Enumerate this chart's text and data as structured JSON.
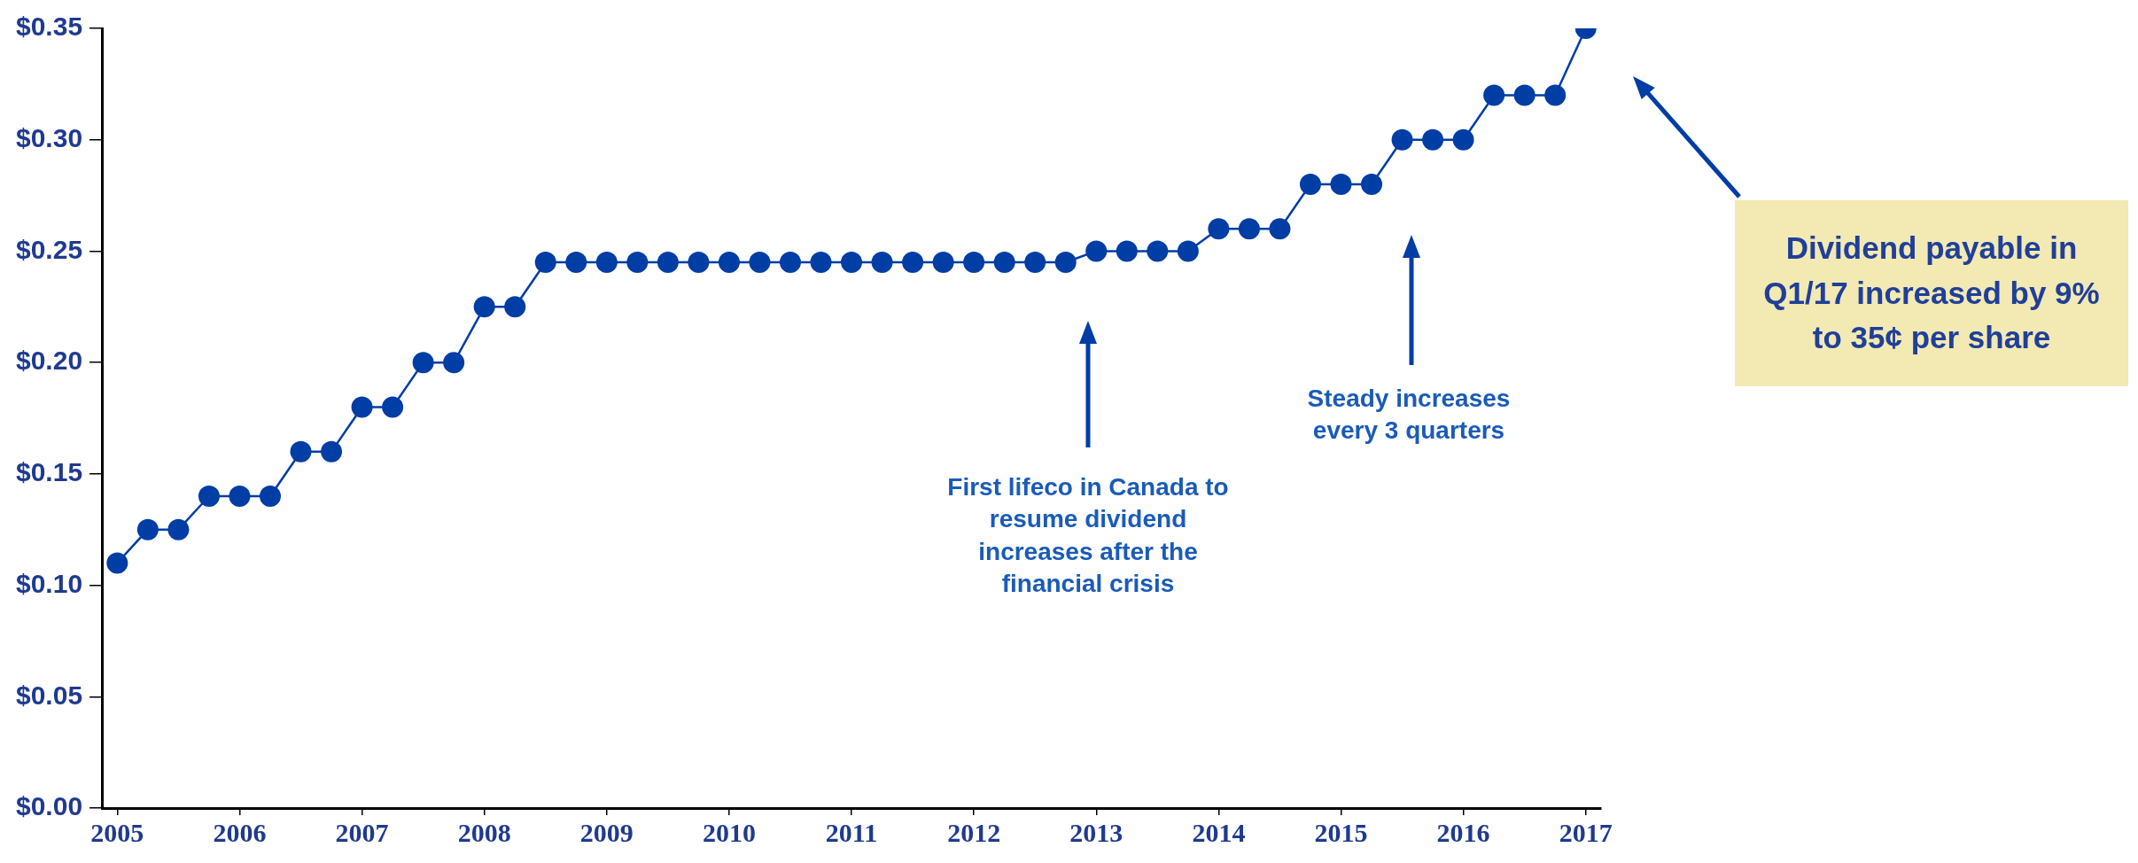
{
  "chart_data": {
    "type": "line",
    "x": [
      2005,
      2005.25,
      2005.5,
      2005.75,
      2006,
      2006.25,
      2006.5,
      2006.75,
      2007,
      2007.25,
      2007.5,
      2007.75,
      2008,
      2008.25,
      2008.5,
      2008.75,
      2009,
      2009.25,
      2009.5,
      2009.75,
      2010,
      2010.25,
      2010.5,
      2010.75,
      2011,
      2011.25,
      2011.5,
      2011.75,
      2012,
      2012.25,
      2012.5,
      2012.75,
      2013,
      2013.25,
      2013.5,
      2013.75,
      2014,
      2014.25,
      2014.5,
      2014.75,
      2015,
      2015.25,
      2015.5,
      2015.75,
      2016,
      2016.25,
      2016.5,
      2016.75,
      2017
    ],
    "series": [
      {
        "color": "#003da5",
        "values": [
          0.11,
          0.125,
          0.125,
          0.14,
          0.14,
          0.14,
          0.16,
          0.16,
          0.18,
          0.18,
          0.2,
          0.2,
          0.225,
          0.225,
          0.245,
          0.245,
          0.245,
          0.245,
          0.245,
          0.245,
          0.245,
          0.245,
          0.245,
          0.245,
          0.245,
          0.245,
          0.245,
          0.245,
          0.245,
          0.245,
          0.245,
          0.245,
          0.25,
          0.25,
          0.25,
          0.25,
          0.26,
          0.26,
          0.26,
          0.28,
          0.28,
          0.28,
          0.3,
          0.3,
          0.3,
          0.32,
          0.32,
          0.32,
          0.35
        ]
      }
    ],
    "xlim": [
      2004.875,
      2017.125
    ],
    "xticks": [
      2005,
      2006,
      2007,
      2008,
      2009,
      2010,
      2011,
      2012,
      2013,
      2014,
      2015,
      2016,
      2017
    ],
    "ylim": [
      0,
      0.35
    ],
    "yticks": [
      {
        "value": 0,
        "label": "$0.00"
      },
      {
        "value": 0.05,
        "label": "$0.05"
      },
      {
        "value": 0.1,
        "label": "$0.10"
      },
      {
        "value": 0.15,
        "label": "$0.15"
      },
      {
        "value": 0.2,
        "label": "$0.20"
      },
      {
        "value": 0.25,
        "label": "$0.25"
      },
      {
        "value": 0.3,
        "label": "$0.30"
      },
      {
        "value": 0.35,
        "label": "$0.35"
      }
    ],
    "grid": false,
    "legend": false,
    "marker": "circle",
    "line_style": "solid",
    "annotations": [
      "First lifeco in Canada to resume dividend increases after the financial crisis",
      "Steady increases every 3 quarters",
      "Dividend payable in Q1/17 increased by 9% to 35¢ per share"
    ]
  }
}
